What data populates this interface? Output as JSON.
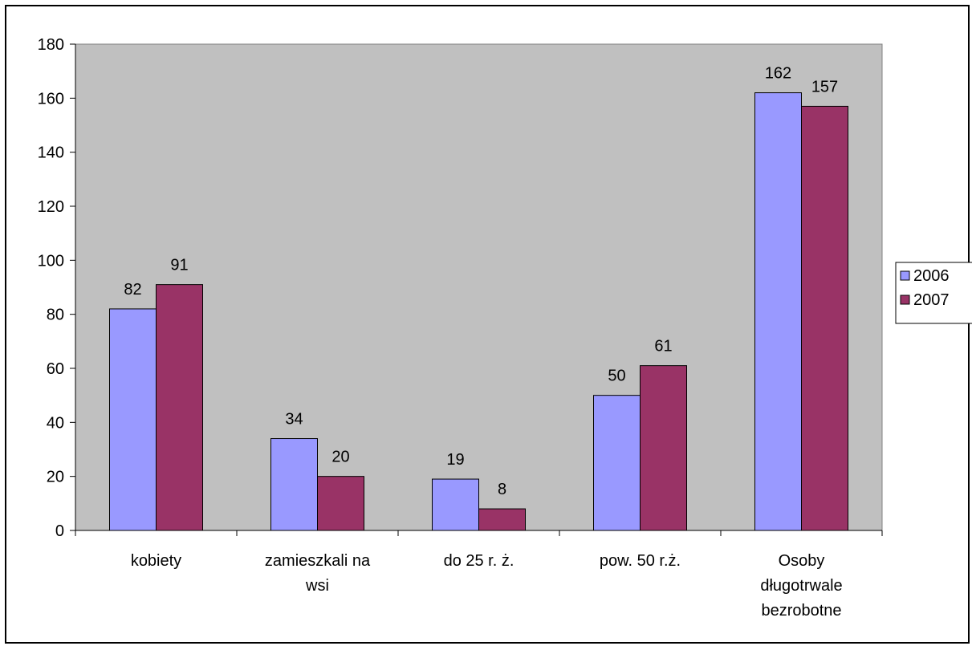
{
  "chart_data": {
    "type": "bar",
    "categories": [
      [
        "kobiety"
      ],
      [
        "zamieszkali na",
        "wsi"
      ],
      [
        "do 25 r. ż."
      ],
      [
        "pow. 50 r.ż."
      ],
      [
        "Osoby",
        "długotrwale",
        "bezrobotne"
      ]
    ],
    "series": [
      {
        "name": "2006",
        "values": [
          82,
          34,
          19,
          50,
          162
        ],
        "color": "#9999ff"
      },
      {
        "name": "2007",
        "values": [
          91,
          20,
          8,
          61,
          157
        ],
        "color": "#993366"
      }
    ],
    "ylim": [
      0,
      180
    ],
    "yticks": [
      0,
      20,
      40,
      60,
      80,
      100,
      120,
      140,
      160,
      180
    ],
    "plot_background": "#c0c0c0",
    "grid": false,
    "legend_position": "right"
  }
}
